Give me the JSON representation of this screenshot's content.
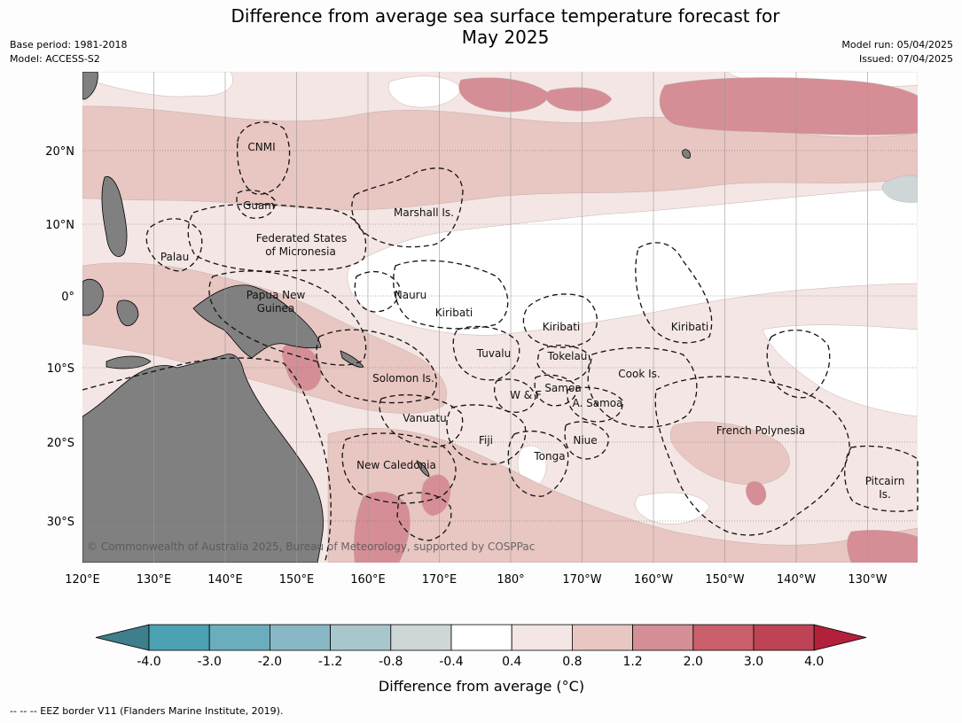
{
  "title_line1": "Difference from average sea surface temperature forecast for",
  "title_line2": "May 2025",
  "meta_left": {
    "base_period": "Base period: 1981-2018",
    "model": "Model: ACCESS-S2"
  },
  "meta_right": {
    "model_run": "Model run: 05/04/2025",
    "issued": "Issued: 07/04/2025"
  },
  "colors": {
    "land": "#808080",
    "c_lt_0.4": "#f4e6e4",
    "c_0.8": "#e8c6c1",
    "c_1.2": "#d58e96",
    "c_2.0": "#c9606c",
    "c_cool_0.8": "#cfd6d8",
    "neutral": "#ffffff"
  },
  "lon_labels": [
    "120°E",
    "130°E",
    "140°E",
    "150°E",
    "160°E",
    "170°E",
    "180°",
    "170°W",
    "160°W",
    "150°W",
    "140°W",
    "130°W"
  ],
  "lat_labels": [
    "20°N",
    "10°N",
    "0°",
    "10°S",
    "20°S",
    "30°S"
  ],
  "regions": [
    {
      "id": "cnmi",
      "text": "CNMI"
    },
    {
      "id": "guam",
      "text": "Guam"
    },
    {
      "id": "marshall",
      "text": "Marshall Is."
    },
    {
      "id": "fsm1",
      "text": "Federated States"
    },
    {
      "id": "fsm2",
      "text": "of Micronesia"
    },
    {
      "id": "palau",
      "text": "Palau"
    },
    {
      "id": "nauru",
      "text": "Nauru"
    },
    {
      "id": "png1",
      "text": "Papua New"
    },
    {
      "id": "png2",
      "text": "Guinea"
    },
    {
      "id": "kiribati_w",
      "text": "Kiribati"
    },
    {
      "id": "kiribati_c",
      "text": "Kiribati"
    },
    {
      "id": "kiribati_e",
      "text": "Kiribati"
    },
    {
      "id": "tuvalu",
      "text": "Tuvalu"
    },
    {
      "id": "tokelau",
      "text": "Tokelau"
    },
    {
      "id": "solomon",
      "text": "Solomon Is."
    },
    {
      "id": "cook",
      "text": "Cook Is."
    },
    {
      "id": "samoa",
      "text": "Samoa"
    },
    {
      "id": "wf",
      "text": "W & F"
    },
    {
      "id": "asamoa",
      "text": "A. Samoa"
    },
    {
      "id": "vanuatu",
      "text": "Vanuatu"
    },
    {
      "id": "fiji",
      "text": "Fiji"
    },
    {
      "id": "niue",
      "text": "Niue"
    },
    {
      "id": "frpoly",
      "text": "French Polynesia"
    },
    {
      "id": "tonga",
      "text": "Tonga"
    },
    {
      "id": "newcal",
      "text": "New Caledonia"
    },
    {
      "id": "pitcairn1",
      "text": "Pitcairn"
    },
    {
      "id": "pitcairn2",
      "text": "Is."
    }
  ],
  "copyright": "© Commonwealth of Australia 2025, Bureau of Meteorology, supported by COSPPac",
  "legend": {
    "ticks": [
      "-4.0",
      "-3.0",
      "-2.0",
      "-1.2",
      "-0.8",
      "-0.4",
      "0.4",
      "0.8",
      "1.2",
      "2.0",
      "3.0",
      "4.0"
    ],
    "colors": [
      "#4aa2b3",
      "#6aaebd",
      "#88b8c5",
      "#a8c7cd",
      "#cfd6d8",
      "#ffffff",
      "#f4e6e4",
      "#e8c6c1",
      "#d58e96",
      "#c9606c",
      "#be4354"
    ],
    "extend_low_color": "#3d7f8b",
    "extend_high_color": "#b3203a",
    "label": "Difference from average (°C)"
  },
  "footnote": "--  --  -- EEZ border V11 (Flanders Marine Institute, 2019)."
}
